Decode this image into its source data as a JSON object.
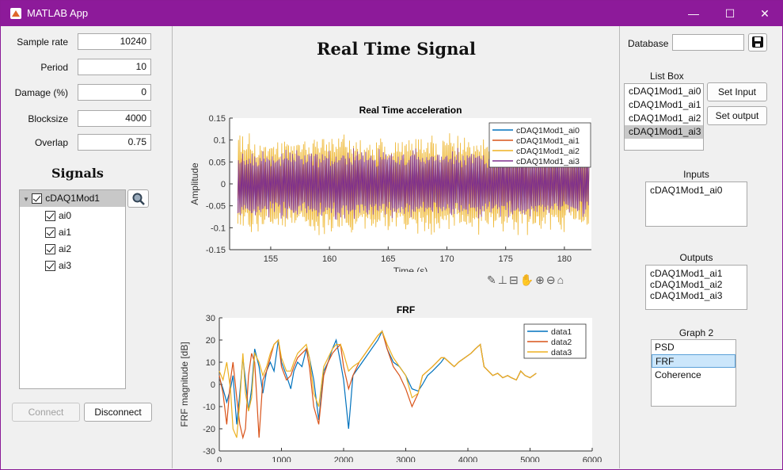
{
  "window": {
    "title": "MATLAB App",
    "minimize": "—",
    "maximize": "☐",
    "close": "✕"
  },
  "left": {
    "params": [
      {
        "label": "Sample rate",
        "value": "10240"
      },
      {
        "label": "Period",
        "value": "10"
      },
      {
        "label": "Damage (%)",
        "value": "0"
      },
      {
        "label": "Blocksize",
        "value": "4000"
      },
      {
        "label": "Overlap",
        "value": "0.75"
      }
    ],
    "signals_title": "Signals",
    "tree": {
      "root": "cDAQ1Mod1",
      "children": [
        "ai0",
        "ai1",
        "ai2",
        "ai3"
      ]
    },
    "connect_label": "Connect",
    "disconnect_label": "Disconnect"
  },
  "center": {
    "title": "Real Time Signal",
    "plot1": {
      "title": "Real Time acceleration",
      "xlabel": "Time (s)",
      "ylabel": "Amplitude",
      "unit": "sec"
    },
    "plot2": {
      "title": "FRF",
      "xlabel": "Frequency [Hz]",
      "ylabel": "FRF magnitude [dB]"
    }
  },
  "right": {
    "database_label": "Database",
    "database_value": "",
    "listbox_title": "List Box",
    "listbox_items": [
      "cDAQ1Mod1_ai0",
      "cDAQ1Mod1_ai1",
      "cDAQ1Mod1_ai2",
      "cDAQ1Mod1_ai3"
    ],
    "listbox_selected": "cDAQ1Mod1_ai3",
    "set_input_label": "Set Input",
    "set_output_label": "Set output",
    "inputs_title": "Inputs",
    "inputs_items": [
      "cDAQ1Mod1_ai0"
    ],
    "outputs_title": "Outputs",
    "outputs_items": [
      "cDAQ1Mod1_ai1",
      "cDAQ1Mod1_ai2",
      "cDAQ1Mod1_ai3"
    ],
    "graph2_title": "Graph 2",
    "graph2_items": [
      "PSD",
      "FRF",
      "Coherence"
    ],
    "graph2_selected": "FRF"
  },
  "chart_data": [
    {
      "type": "line",
      "title": "Real Time acceleration",
      "xlabel": "Time (s)",
      "ylabel": "Amplitude",
      "xlim": [
        151.5,
        182.3
      ],
      "ylim": [
        -0.15,
        0.15
      ],
      "xticks": [
        155,
        160,
        165,
        170,
        175,
        180
      ],
      "yticks": [
        -0.15,
        -0.1,
        -0.05,
        0,
        0.05,
        0.1,
        0.15
      ],
      "x_extent": [
        152.2,
        182.1
      ],
      "series": [
        {
          "name": "cDAQ1Mod1_ai0",
          "color": "#0072bd",
          "amplitude": 0.05
        },
        {
          "name": "cDAQ1Mod1_ai1",
          "color": "#d95319",
          "amplitude": 0.055
        },
        {
          "name": "cDAQ1Mod1_ai2",
          "color": "#edb120",
          "amplitude": 0.1
        },
        {
          "name": "cDAQ1Mod1_ai3",
          "color": "#7e2f8e",
          "amplitude": 0.07
        }
      ],
      "legend": "top-right"
    },
    {
      "type": "line",
      "title": "FRF",
      "xlabel": "Frequency [Hz]",
      "ylabel": "FRF magnitude [dB]",
      "xlim": [
        0,
        6000
      ],
      "ylim": [
        -30,
        30
      ],
      "xticks": [
        0,
        1000,
        2000,
        3000,
        4000,
        5000,
        6000
      ],
      "yticks": [
        -30,
        -20,
        -10,
        0,
        10,
        20,
        30
      ],
      "legend": "top-right",
      "series": [
        {
          "name": "data1",
          "color": "#0072bd",
          "x": [
            0,
            60,
            120,
            180,
            220,
            280,
            330,
            380,
            420,
            470,
            520,
            570,
            640,
            700,
            760,
            820,
            880,
            950,
            1000,
            1080,
            1150,
            1200,
            1260,
            1330,
            1400,
            1450,
            1520,
            1600,
            1680,
            1750,
            1820,
            1880,
            1950,
            2000,
            2080,
            2150,
            2250,
            2350,
            2450,
            2550,
            2620,
            2700,
            2800,
            2900,
            3000,
            3100,
            3200,
            3270,
            3350,
            3430,
            3500,
            3570,
            3620,
            3700,
            3780,
            3850,
            3950,
            4050,
            4120,
            4200,
            4260,
            4330,
            4400,
            4480,
            4560,
            4640,
            4700,
            4780,
            4850,
            4920,
            5000,
            5100
          ],
          "y": [
            3,
            -2,
            -8,
            -2,
            4,
            -18,
            -4,
            12,
            2,
            -12,
            -2,
            16,
            8,
            -4,
            6,
            10,
            6,
            20,
            10,
            4,
            -2,
            6,
            10,
            8,
            16,
            12,
            2,
            -16,
            6,
            10,
            16,
            20,
            10,
            2,
            -20,
            4,
            8,
            12,
            16,
            20,
            24,
            16,
            10,
            8,
            4,
            -2,
            -3,
            0,
            4,
            6,
            8,
            10,
            12,
            10,
            8,
            10,
            12,
            14,
            16,
            18,
            8,
            6,
            4,
            5,
            3,
            4,
            3,
            2,
            6,
            4,
            3,
            5
          ]
        },
        {
          "name": "data2",
          "color": "#d95319",
          "x": [
            0,
            60,
            120,
            180,
            220,
            280,
            330,
            380,
            420,
            470,
            520,
            570,
            640,
            700,
            760,
            820,
            880,
            950,
            1000,
            1080,
            1150,
            1200,
            1260,
            1330,
            1400,
            1450,
            1520,
            1600,
            1680,
            1750,
            1820,
            1880,
            1950,
            2000,
            2080,
            2150,
            2250,
            2350,
            2450,
            2550,
            2620,
            2700,
            2800,
            2900,
            3000,
            3100,
            3200,
            3270,
            3350,
            3430,
            3500,
            3570,
            3620,
            3700,
            3780,
            3850,
            3950,
            4050,
            4120,
            4200,
            4260,
            4330,
            4400,
            4480,
            4560,
            4640,
            4700,
            4780,
            4850,
            4920,
            5000,
            5100
          ],
          "y": [
            4,
            -4,
            -18,
            2,
            10,
            -6,
            -18,
            -24,
            -20,
            4,
            14,
            10,
            -24,
            2,
            6,
            12,
            18,
            20,
            8,
            2,
            4,
            8,
            12,
            14,
            16,
            8,
            -10,
            -18,
            4,
            10,
            14,
            16,
            18,
            8,
            -2,
            4,
            10,
            14,
            18,
            22,
            24,
            16,
            8,
            4,
            -2,
            -10,
            -4,
            4,
            6,
            8,
            10,
            12,
            12,
            10,
            8,
            10,
            12,
            14,
            16,
            18,
            8,
            6,
            4,
            5,
            3,
            4,
            3,
            2,
            6,
            4,
            3,
            5
          ]
        },
        {
          "name": "data3",
          "color": "#edb120",
          "x": [
            0,
            60,
            120,
            180,
            220,
            280,
            330,
            380,
            420,
            470,
            520,
            570,
            640,
            700,
            760,
            820,
            880,
            950,
            1000,
            1080,
            1150,
            1200,
            1260,
            1330,
            1400,
            1450,
            1520,
            1600,
            1680,
            1750,
            1820,
            1880,
            1950,
            2000,
            2080,
            2150,
            2250,
            2350,
            2450,
            2550,
            2620,
            2700,
            2800,
            2900,
            3000,
            3100,
            3200,
            3270,
            3350,
            3430,
            3500,
            3570,
            3620,
            3700,
            3780,
            3850,
            3950,
            4050,
            4120,
            4200,
            4260,
            4330,
            4400,
            4480,
            4560,
            4640,
            4700,
            4780,
            4850,
            4920,
            5000,
            5100
          ],
          "y": [
            6,
            2,
            10,
            -2,
            -20,
            -24,
            -8,
            14,
            -4,
            -12,
            -6,
            14,
            10,
            4,
            8,
            14,
            18,
            20,
            12,
            6,
            6,
            10,
            14,
            16,
            18,
            12,
            -4,
            -10,
            8,
            12,
            16,
            18,
            18,
            14,
            6,
            8,
            10,
            14,
            18,
            22,
            24,
            18,
            12,
            8,
            4,
            -6,
            -4,
            4,
            6,
            8,
            10,
            12,
            12,
            10,
            8,
            10,
            12,
            14,
            16,
            18,
            8,
            6,
            4,
            5,
            3,
            4,
            3,
            2,
            6,
            4,
            3,
            5
          ]
        }
      ]
    }
  ]
}
